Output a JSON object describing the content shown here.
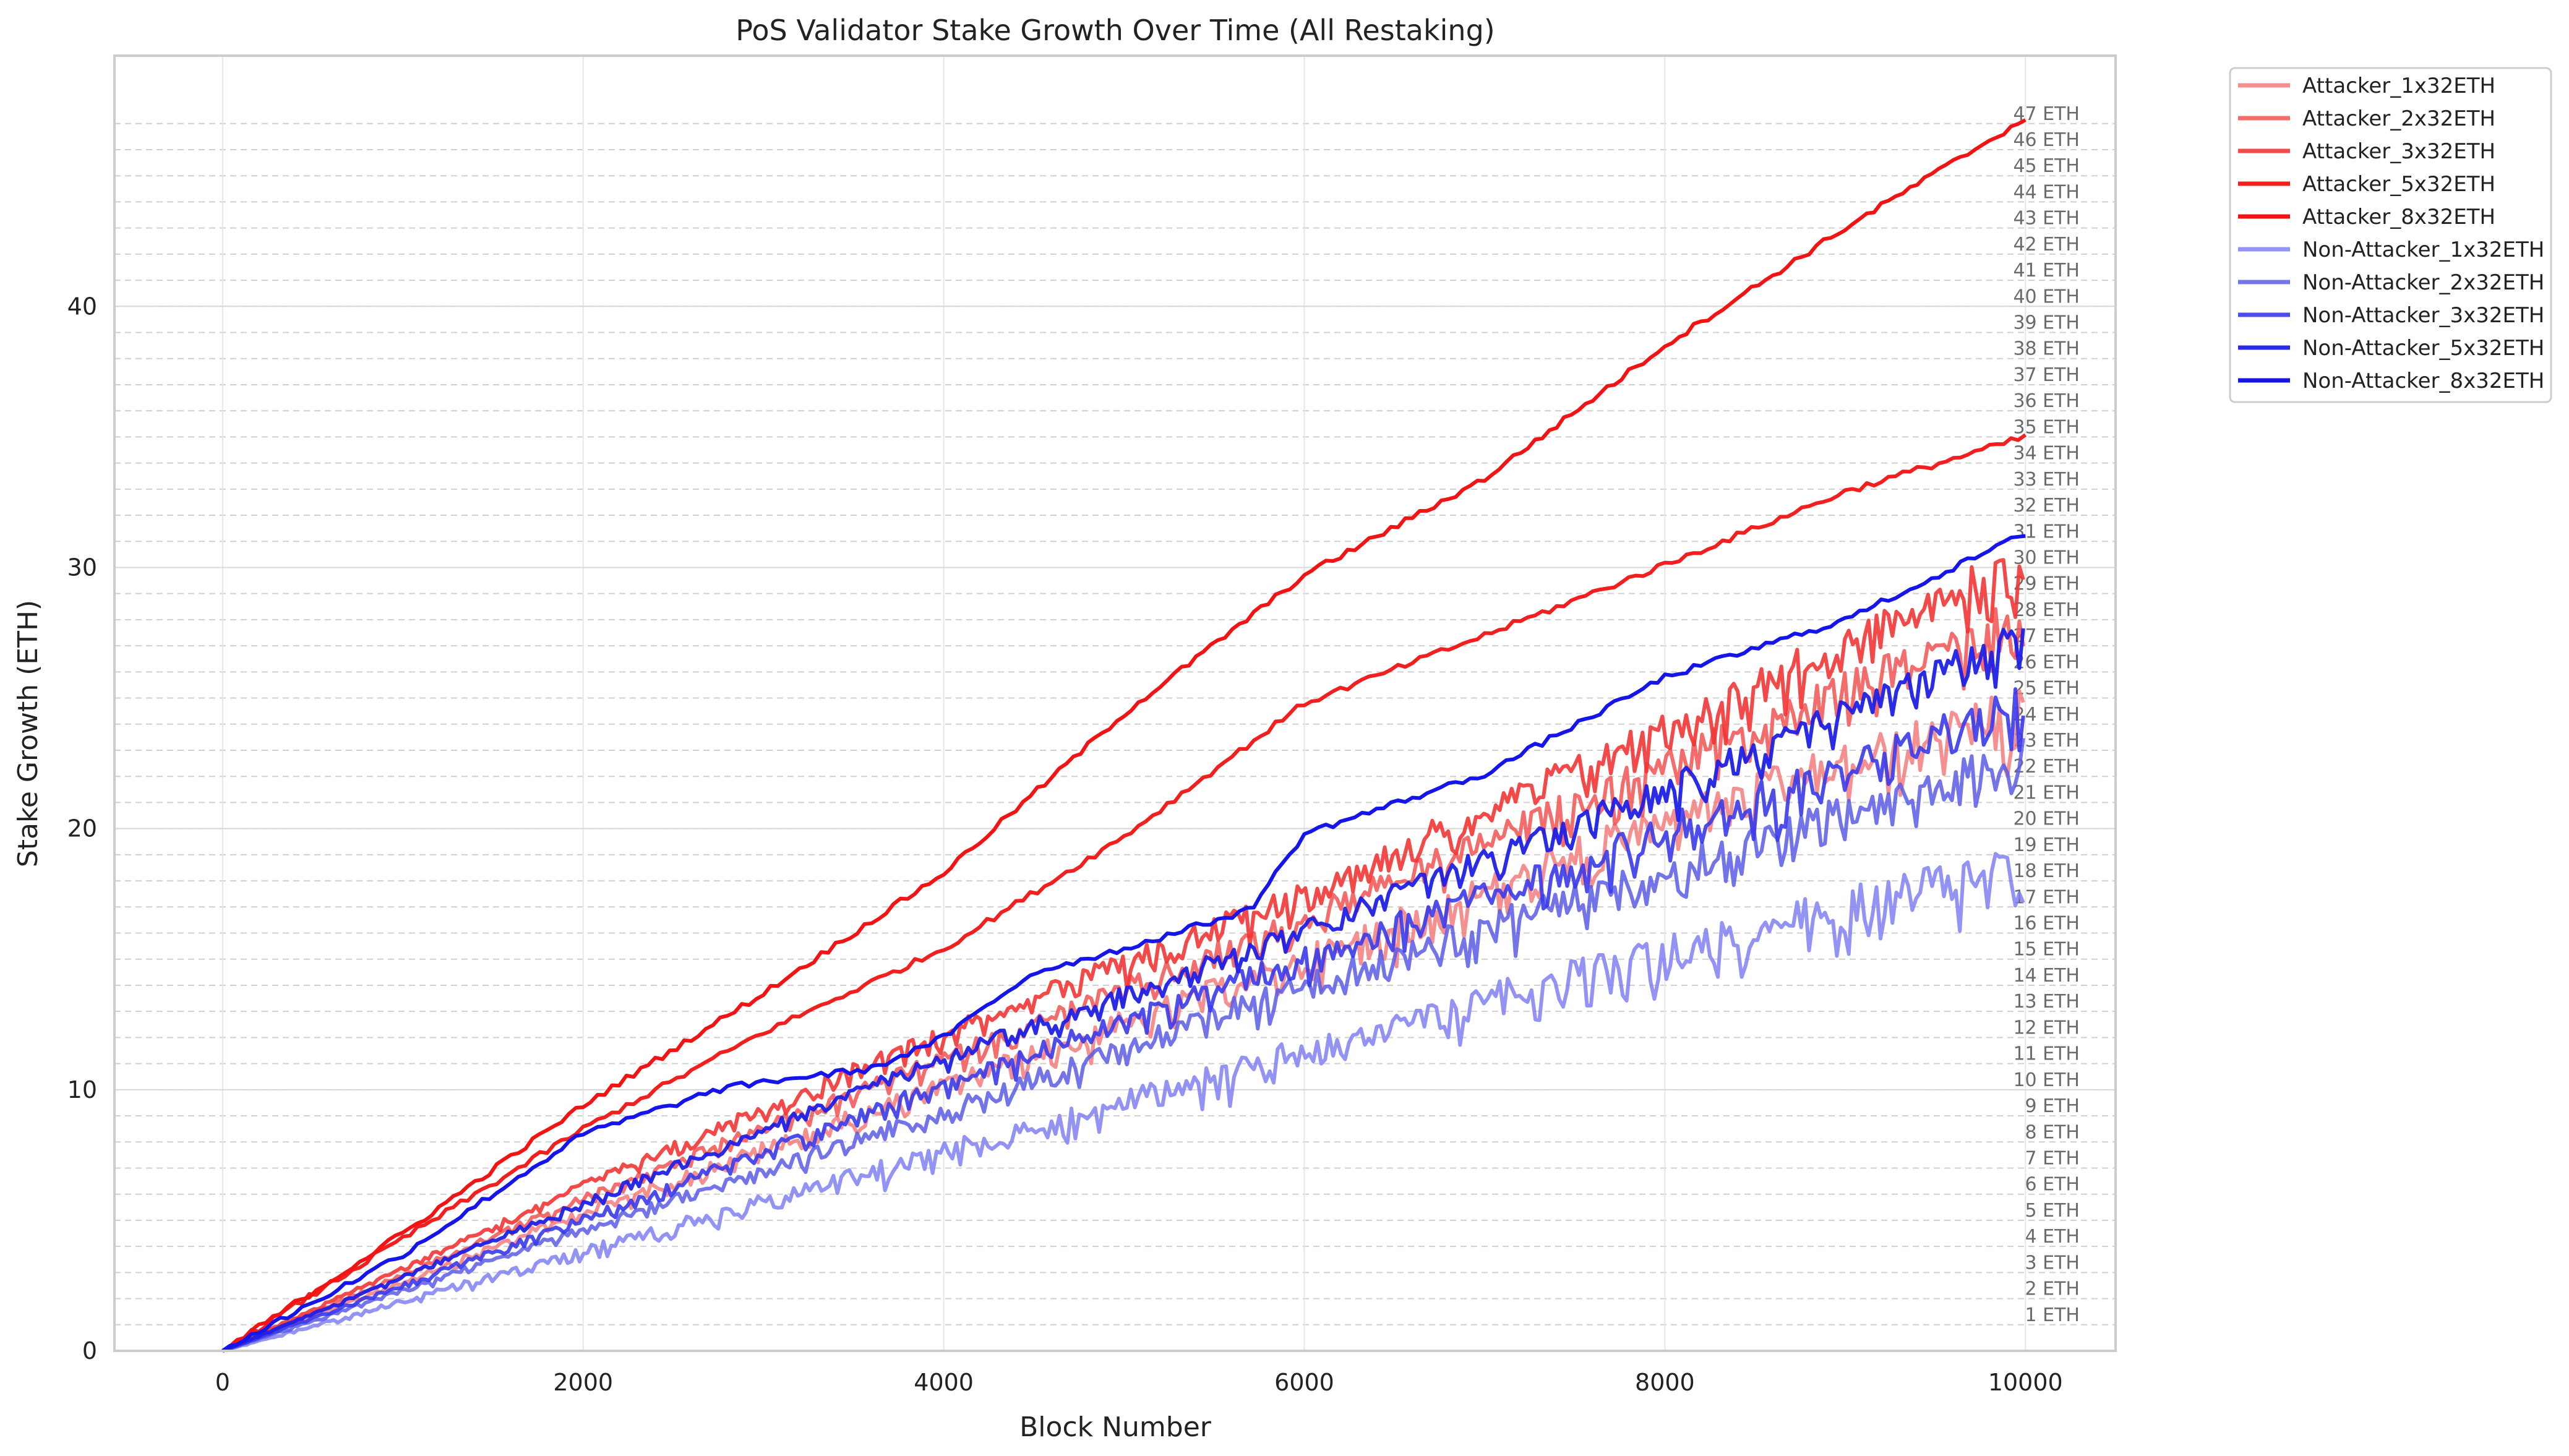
{
  "chart_data": {
    "type": "line",
    "title": "PoS Validator Stake Growth Over Time (All Restaking)",
    "xlabel": "Block Number",
    "ylabel": "Stake Growth (ETH)",
    "xlim": [
      -600,
      10500
    ],
    "ylim": [
      0,
      49.6
    ],
    "xticks": [
      0,
      2000,
      4000,
      6000,
      8000,
      10000
    ],
    "yticks": [
      0,
      10,
      20,
      30,
      40
    ],
    "grid": true,
    "legend_position": "outside-top-right",
    "reference_lines": {
      "values": [
        1,
        2,
        3,
        4,
        5,
        6,
        7,
        8,
        9,
        10,
        11,
        12,
        13,
        14,
        15,
        16,
        17,
        18,
        19,
        20,
        21,
        22,
        23,
        24,
        25,
        26,
        27,
        28,
        29,
        30,
        31,
        32,
        33,
        34,
        35,
        36,
        37,
        38,
        39,
        40,
        41,
        42,
        43,
        44,
        45,
        46,
        47
      ],
      "labels": [
        "1 ETH",
        "2 ETH",
        "3 ETH",
        "4 ETH",
        "5 ETH",
        "6 ETH",
        "7 ETH",
        "8 ETH",
        "9 ETH",
        "10 ETH",
        "11 ETH",
        "12 ETH",
        "13 ETH",
        "14 ETH",
        "15 ETH",
        "16 ETH",
        "17 ETH",
        "18 ETH",
        "19 ETH",
        "20 ETH",
        "21 ETH",
        "22 ETH",
        "23 ETH",
        "24 ETH",
        "25 ETH",
        "26 ETH",
        "27 ETH",
        "28 ETH",
        "29 ETH",
        "30 ETH",
        "31 ETH",
        "32 ETH",
        "33 ETH",
        "34 ETH",
        "35 ETH",
        "36 ETH",
        "37 ETH",
        "38 ETH",
        "39 ETH",
        "40 ETH",
        "41 ETH",
        "42 ETH",
        "43 ETH",
        "44 ETH",
        "45 ETH",
        "46 ETH",
        "47 ETH"
      ]
    },
    "series": [
      {
        "name": "Attacker_1x32ETH",
        "color": "#f47c7c",
        "opacity": 0.85,
        "x": [
          0,
          2000,
          4000,
          6000,
          8000,
          10000
        ],
        "y": [
          0,
          5.5,
          10.5,
          15.5,
          21,
          25.5
        ],
        "noise": 3.5
      },
      {
        "name": "Attacker_2x32ETH",
        "color": "#f25252",
        "opacity": 0.85,
        "x": [
          0,
          2000,
          4000,
          6000,
          8000,
          10000
        ],
        "y": [
          0,
          6,
          11.5,
          17,
          23,
          29
        ],
        "noise": 3.0
      },
      {
        "name": "Attacker_3x32ETH",
        "color": "#f23535",
        "opacity": 0.9,
        "x": [
          0,
          2000,
          4000,
          6000,
          8000,
          10000
        ],
        "y": [
          0,
          6.5,
          12.5,
          18,
          24.5,
          31
        ],
        "noise": 3.0
      },
      {
        "name": "Attacker_5x32ETH",
        "color": "#f21f1f",
        "opacity": 1.0,
        "x": [
          0,
          1000,
          2000,
          3000,
          4000,
          5000,
          6000,
          7000,
          8000,
          9000,
          10000
        ],
        "y": [
          0,
          4.3,
          8.5,
          12.2,
          15.4,
          19.7,
          24.8,
          27.4,
          30.1,
          32.9,
          35
        ]
      },
      {
        "name": "Attacker_8x32ETH",
        "color": "#f21414",
        "opacity": 1.0,
        "x": [
          0,
          1000,
          2000,
          3000,
          4000,
          5000,
          6000,
          7000,
          8000,
          9000,
          10000
        ],
        "y": [
          0,
          4.5,
          9.4,
          13.7,
          18.3,
          24.4,
          29.7,
          33.4,
          38.5,
          43,
          47.2
        ]
      },
      {
        "name": "Non-Attacker_1x32ETH",
        "color": "#8080f4",
        "opacity": 0.85,
        "x": [
          0,
          2000,
          4000,
          6000,
          8000,
          10000
        ],
        "y": [
          0,
          4,
          8,
          12,
          16,
          19.5
        ],
        "noise": 3.5
      },
      {
        "name": "Non-Attacker_2x32ETH",
        "color": "#5c5ce6",
        "opacity": 0.85,
        "x": [
          0,
          2000,
          4000,
          6000,
          8000,
          10000
        ],
        "y": [
          0,
          4.8,
          9.5,
          14.5,
          19,
          23.5
        ],
        "noise": 3.0
      },
      {
        "name": "Non-Attacker_3x32ETH",
        "color": "#3a3aeb",
        "opacity": 0.9,
        "x": [
          0,
          2000,
          4000,
          6000,
          8000,
          10000
        ],
        "y": [
          0,
          5.2,
          10.5,
          15.5,
          20.5,
          25.5
        ],
        "noise": 3.0
      },
      {
        "name": "Non-Attacker_5x32ETH",
        "color": "#1f1fe8",
        "opacity": 0.95,
        "x": [
          0,
          2000,
          4000,
          6000,
          8000,
          10000
        ],
        "y": [
          0,
          5.8,
          11.5,
          16.5,
          22,
          28
        ],
        "noise": 2.5
      },
      {
        "name": "Non-Attacker_8x32ETH",
        "color": "#1414eb",
        "opacity": 1.0,
        "x": [
          0,
          1000,
          2000,
          2750,
          3000,
          3600,
          4000,
          4500,
          5000,
          5700,
          6000,
          7000,
          8000,
          9000,
          10000
        ],
        "y": [
          0,
          3.7,
          8.3,
          10,
          10.3,
          10.8,
          12,
          14.5,
          15.4,
          16.9,
          19.8,
          22.1,
          25.8,
          28,
          31.3
        ]
      }
    ]
  }
}
